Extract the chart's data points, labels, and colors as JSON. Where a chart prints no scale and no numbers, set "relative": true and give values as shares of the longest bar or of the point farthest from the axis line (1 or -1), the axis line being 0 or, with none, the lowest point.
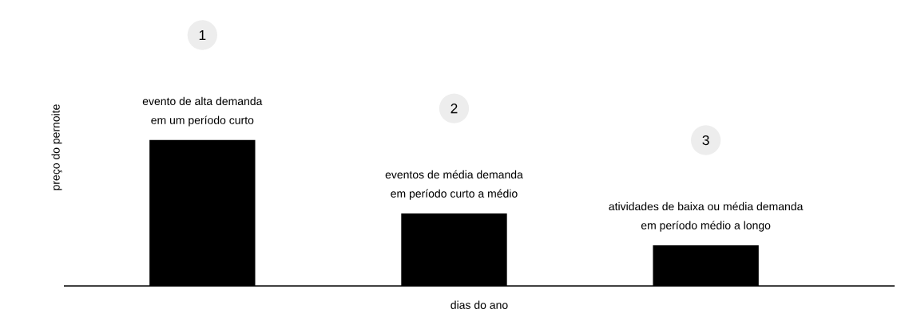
{
  "chart_data": {
    "type": "bar",
    "relative": true,
    "color": "#000000",
    "categories": [
      null,
      null,
      null
    ],
    "values": [
      1,
      0.497,
      0.279
    ],
    "xlabel": "dias do ano",
    "ylabel": "preço do pernoite",
    "annotations": [
      "1",
      "evento de alta demanda",
      "em um período curto",
      "2",
      "eventos de média demanda",
      "em período curto a médio",
      "3",
      "atividades de baixa ou média demanda",
      "em período médio a longo"
    ]
  }
}
